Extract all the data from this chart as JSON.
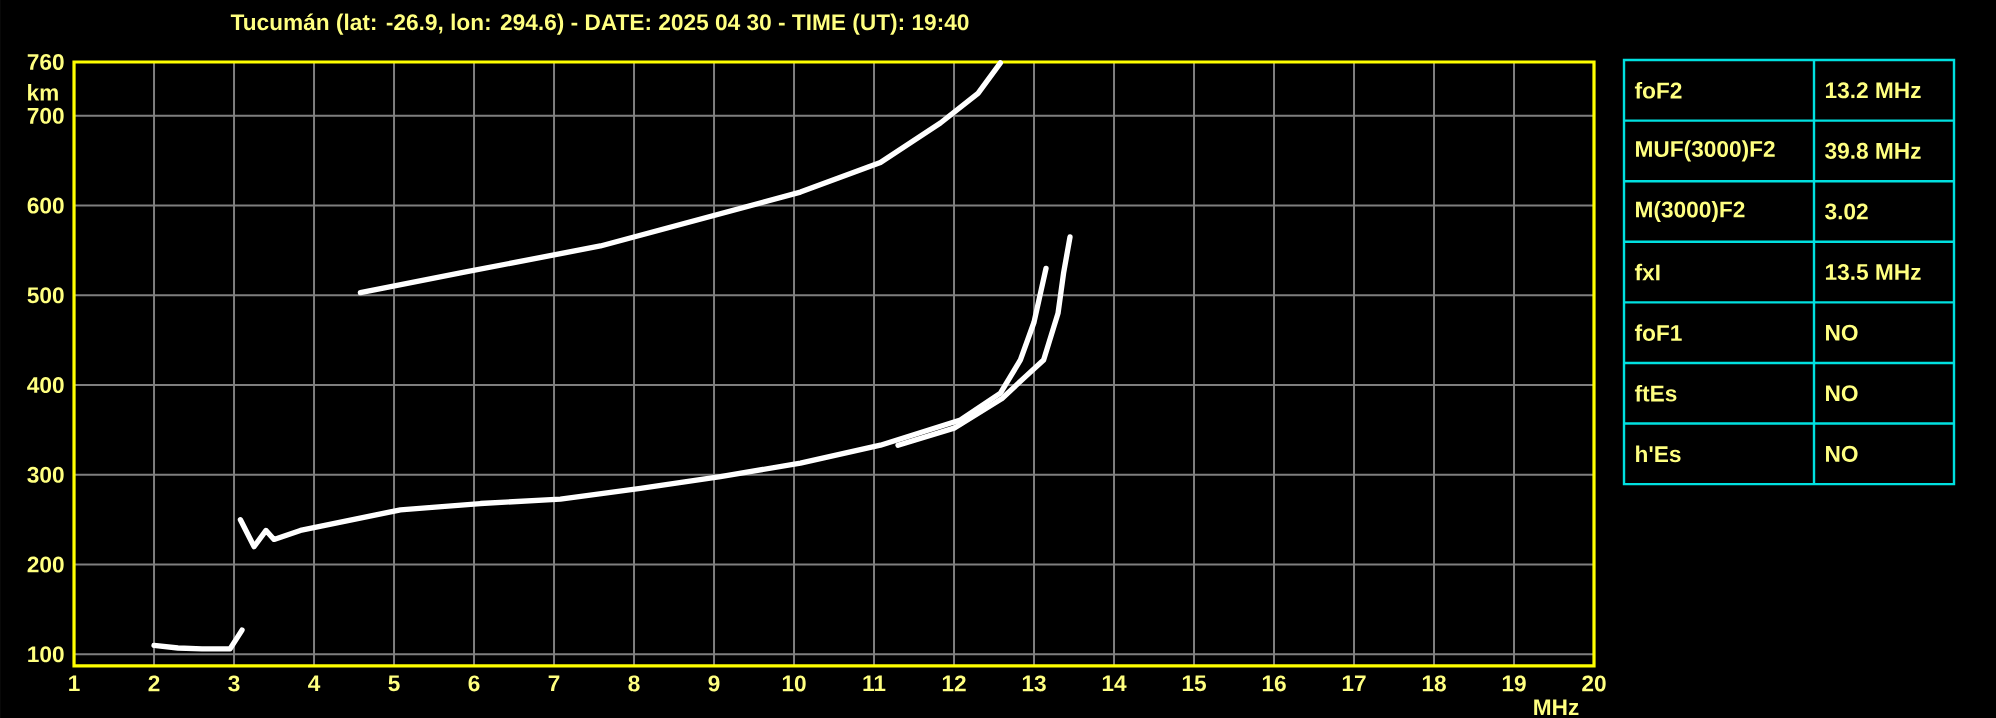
{
  "chart_data": [
    {
      "type": "line",
      "title": "Tucumán (lat: -26.9, lon: 294.6) - DATE: 2025 04 30 - TIME (UT): 19:40",
      "xlabel": "MHz",
      "ylabel": "km",
      "xlim": [
        1,
        20
      ],
      "ylim": [
        87,
        760
      ],
      "xticks": [
        1,
        2,
        3,
        4,
        5,
        6,
        7,
        8,
        9,
        10,
        11,
        12,
        13,
        14,
        15,
        16,
        17,
        18,
        19,
        20
      ],
      "yticks": [
        100,
        200,
        300,
        400,
        500,
        600,
        700,
        760
      ],
      "grid": true,
      "series": [
        {
          "color": "#ffffff",
          "x": [
            2.0,
            2.3,
            2.6,
            2.95,
            3.1
          ],
          "values": [
            110,
            107,
            106,
            106,
            127
          ]
        },
        {
          "color": "#ffffff",
          "x": [
            3.08,
            3.25,
            3.4,
            3.5,
            3.83,
            5.08,
            6.08,
            7.08,
            8.08,
            9.08,
            10.08,
            11.08,
            12.08,
            12.58,
            12.83,
            13.0,
            13.08,
            13.15
          ],
          "values": [
            250,
            220,
            238,
            228,
            238,
            261,
            268,
            273,
            285,
            298,
            313,
            333,
            361,
            391,
            428,
            470,
            502,
            530
          ]
        },
        {
          "color": "#ffffff",
          "x": [
            11.3,
            12.0,
            12.6,
            12.9,
            13.12,
            13.3,
            13.37,
            13.45
          ],
          "values": [
            333,
            352,
            385,
            410,
            428,
            480,
            525,
            565
          ]
        },
        {
          "color": "#ffffff",
          "x": [
            4.58,
            5.83,
            7.58,
            8.83,
            10.08,
            11.08,
            11.83,
            12.3,
            12.58
          ],
          "values": [
            503,
            525,
            555,
            585,
            615,
            648,
            692,
            725,
            759
          ]
        }
      ]
    },
    {
      "type": "other",
      "categories": [
        "foF2",
        "MUF(3000)F2",
        "M(3000)F2",
        "fxI",
        "foF1",
        "ftEs",
        "h'Es"
      ],
      "annotations": [
        "13.2 MHz",
        "39.8 MHz",
        "3.02",
        "13.5 MHz",
        "NO",
        "NO",
        "NO"
      ]
    }
  ]
}
